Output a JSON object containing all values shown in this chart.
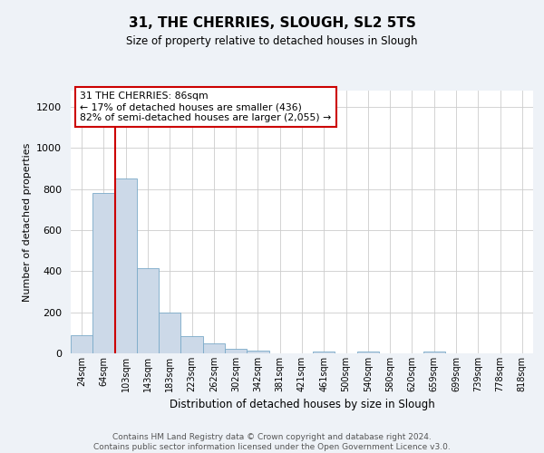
{
  "title1": "31, THE CHERRIES, SLOUGH, SL2 5TS",
  "title2": "Size of property relative to detached houses in Slough",
  "xlabel": "Distribution of detached houses by size in Slough",
  "ylabel": "Number of detached properties",
  "bar_color": "#ccd9e8",
  "bar_edge_color": "#7aaac8",
  "categories": [
    "24sqm",
    "64sqm",
    "103sqm",
    "143sqm",
    "183sqm",
    "223sqm",
    "262sqm",
    "302sqm",
    "342sqm",
    "381sqm",
    "421sqm",
    "461sqm",
    "500sqm",
    "540sqm",
    "580sqm",
    "620sqm",
    "659sqm",
    "699sqm",
    "739sqm",
    "778sqm",
    "818sqm"
  ],
  "values": [
    90,
    780,
    850,
    415,
    200,
    85,
    50,
    22,
    15,
    0,
    0,
    10,
    0,
    10,
    0,
    0,
    10,
    0,
    0,
    0,
    0
  ],
  "ylim": [
    0,
    1280
  ],
  "yticks": [
    0,
    200,
    400,
    600,
    800,
    1000,
    1200
  ],
  "annotation_box_text": "31 THE CHERRIES: 86sqm\n← 17% of detached houses are smaller (436)\n82% of semi-detached houses are larger (2,055) →",
  "vline_color": "#cc0000",
  "box_facecolor": "white",
  "box_edgecolor": "#cc0000",
  "footer_text": "Contains HM Land Registry data © Crown copyright and database right 2024.\nContains public sector information licensed under the Open Government Licence v3.0.",
  "background_color": "#eef2f7",
  "plot_background": "white",
  "grid_color": "#cccccc"
}
